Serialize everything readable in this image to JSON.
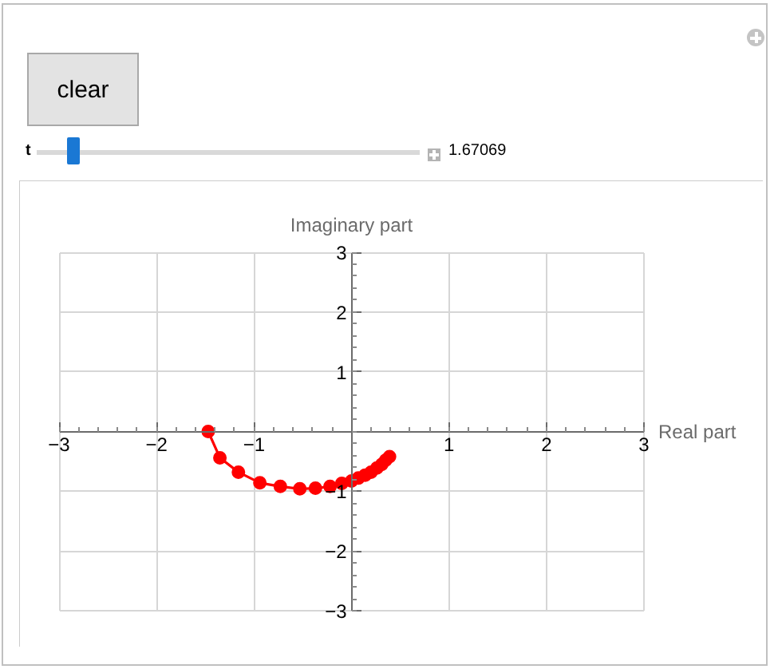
{
  "chart_data": {
    "type": "line",
    "xlabel": "Real part",
    "ylabel": "Imaginary part",
    "x": [
      -1.47,
      -1.35,
      -1.16,
      -0.94,
      -0.73,
      -0.53,
      -0.37,
      -0.22,
      -0.1,
      0.0,
      0.07,
      0.14,
      0.2,
      0.26,
      0.31,
      0.35,
      0.39
    ],
    "series": [
      {
        "color": "#ff0000",
        "values": [
          0,
          -0.44,
          -0.68,
          -0.86,
          -0.92,
          -0.96,
          -0.95,
          -0.92,
          -0.87,
          -0.83,
          -0.78,
          -0.73,
          -0.68,
          -0.61,
          -0.55,
          -0.48,
          -0.42
        ]
      }
    ],
    "xlim": [
      -3,
      3
    ],
    "ylim": [
      -3,
      3
    ],
    "xticks": [
      -3,
      -2,
      -1,
      1,
      2,
      3
    ],
    "yticks": [
      -3,
      -2,
      -1,
      1,
      2,
      3
    ],
    "grid": true,
    "marker": "circle",
    "line_style": "solid",
    "annotations": [
      "clear",
      "t",
      "1.67069"
    ]
  }
}
